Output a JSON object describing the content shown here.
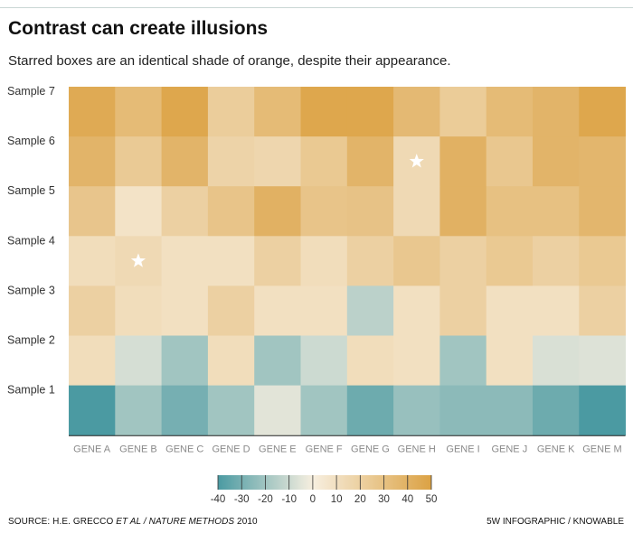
{
  "header": {
    "title": "Contrast can create illusions",
    "subtitle": "Starred boxes are an identical shade of orange, despite their appearance."
  },
  "footer": {
    "source_prefix": "SOURCE: H.E. GRECCO ",
    "source_italic": "ET AL / NATURE METHODS",
    "source_suffix": " 2010",
    "credit": "5W INFOGRAPHIC / KNOWABLE"
  },
  "colors": {
    "teal_dark": "#4b9aa2",
    "neutral": "#f7efe0",
    "orange_dark": "#dca244"
  },
  "chart_data": {
    "type": "heatmap",
    "title": "Contrast can create illusions",
    "xlabel": "",
    "ylabel": "",
    "columns": [
      "GENE A",
      "GENE B",
      "GENE C",
      "GENE D",
      "GENE E",
      "GENE F",
      "GENE G",
      "GENE H",
      "GENE I",
      "GENE J",
      "GENE K",
      "GENE M"
    ],
    "rows": [
      "Sample 7",
      "Sample 6",
      "Sample 5",
      "Sample 4",
      "Sample 3",
      "Sample 2",
      "Sample 1"
    ],
    "values": [
      [
        45,
        34,
        47,
        22,
        34,
        47,
        47,
        35,
        23,
        34,
        38,
        47
      ],
      [
        38,
        24,
        38,
        18,
        16,
        25,
        38,
        14,
        40,
        26,
        38,
        37
      ],
      [
        27,
        8,
        20,
        28,
        40,
        28,
        29,
        14,
        40,
        30,
        30,
        37
      ],
      [
        12,
        14,
        10,
        10,
        20,
        12,
        20,
        26,
        20,
        25,
        20,
        25
      ],
      [
        20,
        12,
        10,
        20,
        10,
        10,
        -14,
        10,
        20,
        10,
        10,
        20
      ],
      [
        12,
        -8,
        -20,
        12,
        -20,
        -10,
        12,
        10,
        -20,
        10,
        -7,
        -6
      ],
      [
        -40,
        -20,
        -30,
        -20,
        -5,
        -20,
        -32,
        -22,
        -25,
        -25,
        -32,
        -40
      ]
    ],
    "starred": [
      [
        1,
        7
      ],
      [
        3,
        1
      ]
    ],
    "color_scale": {
      "min": -40,
      "max": 50,
      "ticks": [
        -40,
        -30,
        -20,
        -10,
        0,
        10,
        20,
        30,
        40,
        50
      ]
    }
  }
}
